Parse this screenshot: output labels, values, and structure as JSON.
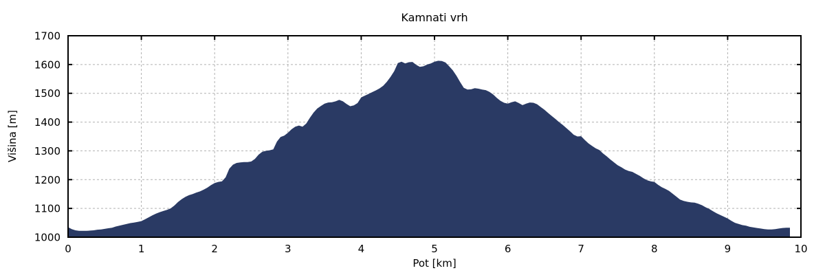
{
  "chart_data": {
    "type": "area",
    "title": "Kamnati vrh",
    "xlabel": "Pot [km]",
    "ylabel": "Višina [m]",
    "xlim": [
      0,
      10
    ],
    "ylim": [
      1000,
      1700
    ],
    "xticks": [
      0,
      1,
      2,
      3,
      4,
      5,
      6,
      7,
      8,
      9,
      10
    ],
    "yticks": [
      1000,
      1100,
      1200,
      1300,
      1400,
      1500,
      1600,
      1700
    ],
    "grid": "dashed-major",
    "legend": "none",
    "colors": {
      "fill": "#2a3a64",
      "frame": "#000000",
      "grid": "#b0b0b0",
      "text": "#000000",
      "background": "#ffffff"
    },
    "series": [
      {
        "name": "elevation-profile",
        "x": [
          0.0,
          0.05,
          0.1,
          0.15,
          0.2,
          0.25,
          0.3,
          0.35,
          0.4,
          0.45,
          0.5,
          0.55,
          0.6,
          0.65,
          0.7,
          0.75,
          0.8,
          0.85,
          0.9,
          0.95,
          1.0,
          1.05,
          1.1,
          1.15,
          1.2,
          1.25,
          1.3,
          1.35,
          1.4,
          1.45,
          1.5,
          1.55,
          1.6,
          1.65,
          1.7,
          1.75,
          1.8,
          1.85,
          1.9,
          1.95,
          2.0,
          2.05,
          2.1,
          2.15,
          2.2,
          2.25,
          2.3,
          2.35,
          2.4,
          2.45,
          2.5,
          2.55,
          2.6,
          2.65,
          2.7,
          2.75,
          2.8,
          2.85,
          2.9,
          2.95,
          3.0,
          3.05,
          3.1,
          3.15,
          3.2,
          3.25,
          3.3,
          3.35,
          3.4,
          3.45,
          3.5,
          3.55,
          3.6,
          3.65,
          3.7,
          3.75,
          3.8,
          3.85,
          3.9,
          3.95,
          4.0,
          4.05,
          4.1,
          4.15,
          4.2,
          4.25,
          4.3,
          4.35,
          4.4,
          4.45,
          4.5,
          4.55,
          4.6,
          4.65,
          4.7,
          4.75,
          4.8,
          4.85,
          4.9,
          4.95,
          5.0,
          5.05,
          5.1,
          5.15,
          5.2,
          5.25,
          5.3,
          5.35,
          5.4,
          5.45,
          5.5,
          5.55,
          5.6,
          5.65,
          5.7,
          5.75,
          5.8,
          5.85,
          5.9,
          5.95,
          6.0,
          6.05,
          6.1,
          6.15,
          6.2,
          6.25,
          6.3,
          6.35,
          6.4,
          6.45,
          6.5,
          6.55,
          6.6,
          6.65,
          6.7,
          6.75,
          6.8,
          6.85,
          6.9,
          6.95,
          7.0,
          7.05,
          7.1,
          7.15,
          7.2,
          7.25,
          7.3,
          7.35,
          7.4,
          7.45,
          7.5,
          7.55,
          7.6,
          7.65,
          7.7,
          7.75,
          7.8,
          7.85,
          7.9,
          7.95,
          8.0,
          8.05,
          8.1,
          8.15,
          8.2,
          8.25,
          8.3,
          8.35,
          8.4,
          8.45,
          8.5,
          8.55,
          8.6,
          8.65,
          8.7,
          8.75,
          8.8,
          8.85,
          8.9,
          8.95,
          9.0,
          9.05,
          9.1,
          9.15,
          9.2,
          9.25,
          9.3,
          9.35,
          9.4,
          9.45,
          9.5,
          9.55,
          9.6,
          9.65,
          9.7,
          9.75,
          9.8,
          9.85
        ],
        "y": [
          1035,
          1028,
          1024,
          1022,
          1022,
          1022,
          1023,
          1024,
          1026,
          1027,
          1029,
          1031,
          1033,
          1037,
          1040,
          1043,
          1046,
          1049,
          1051,
          1053,
          1056,
          1062,
          1069,
          1076,
          1082,
          1087,
          1091,
          1095,
          1100,
          1110,
          1122,
          1132,
          1140,
          1146,
          1150,
          1155,
          1159,
          1165,
          1172,
          1181,
          1188,
          1192,
          1194,
          1208,
          1238,
          1252,
          1258,
          1260,
          1261,
          1261,
          1263,
          1272,
          1287,
          1297,
          1300,
          1302,
          1305,
          1332,
          1348,
          1353,
          1363,
          1375,
          1384,
          1388,
          1384,
          1395,
          1415,
          1433,
          1447,
          1456,
          1464,
          1468,
          1469,
          1472,
          1477,
          1472,
          1463,
          1455,
          1458,
          1466,
          1486,
          1492,
          1498,
          1504,
          1510,
          1517,
          1526,
          1540,
          1557,
          1577,
          1605,
          1610,
          1604,
          1608,
          1609,
          1599,
          1592,
          1594,
          1600,
          1604,
          1610,
          1613,
          1612,
          1607,
          1594,
          1580,
          1561,
          1539,
          1519,
          1513,
          1514,
          1518,
          1516,
          1513,
          1511,
          1505,
          1496,
          1484,
          1474,
          1467,
          1464,
          1469,
          1472,
          1466,
          1459,
          1464,
          1468,
          1467,
          1462,
          1452,
          1443,
          1432,
          1421,
          1411,
          1400,
          1390,
          1379,
          1368,
          1356,
          1350,
          1351,
          1338,
          1326,
          1317,
          1309,
          1303,
          1291,
          1281,
          1270,
          1260,
          1250,
          1243,
          1235,
          1230,
          1227,
          1220,
          1213,
          1205,
          1198,
          1194,
          1192,
          1182,
          1174,
          1168,
          1161,
          1151,
          1141,
          1131,
          1126,
          1123,
          1121,
          1120,
          1116,
          1111,
          1104,
          1098,
          1090,
          1083,
          1077,
          1071,
          1065,
          1057,
          1050,
          1046,
          1042,
          1040,
          1036,
          1034,
          1032,
          1030,
          1028,
          1027,
          1027,
          1028,
          1030,
          1032,
          1033,
          1033
        ]
      }
    ]
  }
}
